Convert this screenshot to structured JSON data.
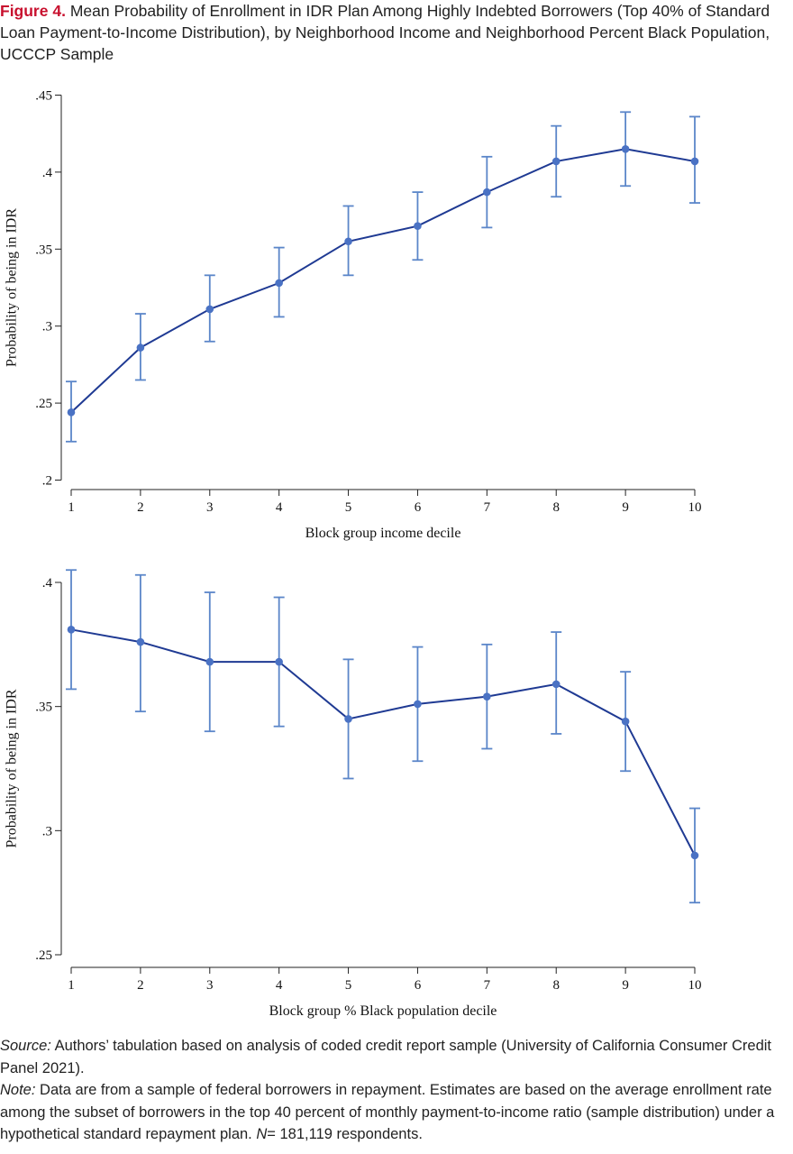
{
  "figure": {
    "label": "Figure 4.",
    "title": "Mean Probability of Enrollment in IDR Plan Among Highly Indebted Borrowers (Top 40% of Standard Loan Payment-to-Income Distribution), by Neighborhood Income and Neighborhood Percent Black Population, UCCCP Sample"
  },
  "chart_data": [
    {
      "type": "line",
      "xlabel": "Block group income decile",
      "ylabel": "Probability of being in IDR",
      "x": [
        1,
        2,
        3,
        4,
        5,
        6,
        7,
        8,
        9,
        10
      ],
      "values": [
        0.244,
        0.286,
        0.311,
        0.328,
        0.355,
        0.365,
        0.387,
        0.407,
        0.415,
        0.407
      ],
      "ci_low": [
        0.225,
        0.265,
        0.29,
        0.306,
        0.333,
        0.343,
        0.364,
        0.384,
        0.391,
        0.38
      ],
      "ci_high": [
        0.264,
        0.308,
        0.333,
        0.351,
        0.378,
        0.387,
        0.41,
        0.43,
        0.439,
        0.436
      ],
      "ylim": [
        0.2,
        0.45
      ],
      "yticks": [
        0.2,
        0.25,
        0.3,
        0.35,
        0.4,
        0.45
      ],
      "ytick_labels": [
        ".2",
        ".25",
        ".3",
        ".35",
        ".4",
        ".45"
      ],
      "xticks": [
        1,
        2,
        3,
        4,
        5,
        6,
        7,
        8,
        9,
        10
      ],
      "grid": false,
      "line_color": "#1f3a93",
      "marker_color": "#4a72c4",
      "ci_color": "#5b86c9"
    },
    {
      "type": "line",
      "xlabel": "Block group % Black population decile",
      "ylabel": "Probability of being in IDR",
      "x": [
        1,
        2,
        3,
        4,
        5,
        6,
        7,
        8,
        9,
        10
      ],
      "values": [
        0.381,
        0.376,
        0.368,
        0.368,
        0.345,
        0.351,
        0.354,
        0.359,
        0.344,
        0.29
      ],
      "ci_low": [
        0.357,
        0.348,
        0.34,
        0.342,
        0.321,
        0.328,
        0.333,
        0.339,
        0.324,
        0.271
      ],
      "ci_high": [
        0.405,
        0.403,
        0.396,
        0.394,
        0.369,
        0.374,
        0.375,
        0.38,
        0.364,
        0.309
      ],
      "ylim": [
        0.25,
        0.4
      ],
      "yticks": [
        0.25,
        0.3,
        0.35,
        0.4
      ],
      "ytick_labels": [
        ".25",
        ".3",
        ".35",
        ".4"
      ],
      "xticks": [
        1,
        2,
        3,
        4,
        5,
        6,
        7,
        8,
        9,
        10
      ],
      "grid": false,
      "line_color": "#1f3a93",
      "marker_color": "#4a72c4",
      "ci_color": "#5b86c9"
    }
  ],
  "notes": {
    "source_label": "Source:",
    "source_text": "Authors’ tabulation based on analysis of coded credit report sample (University of California Consumer Credit Panel 2021).",
    "note_label": "Note:",
    "note_text": "Data are from a sample of federal borrowers in repayment. Estimates are based on the average enrollment rate among the subset of borrowers in the top 40 percent of monthly payment-to-income ratio (sample distribution) under a hypothetical standard repayment plan.",
    "n_label": "N",
    "n_text": "= 181,119 respondents."
  }
}
